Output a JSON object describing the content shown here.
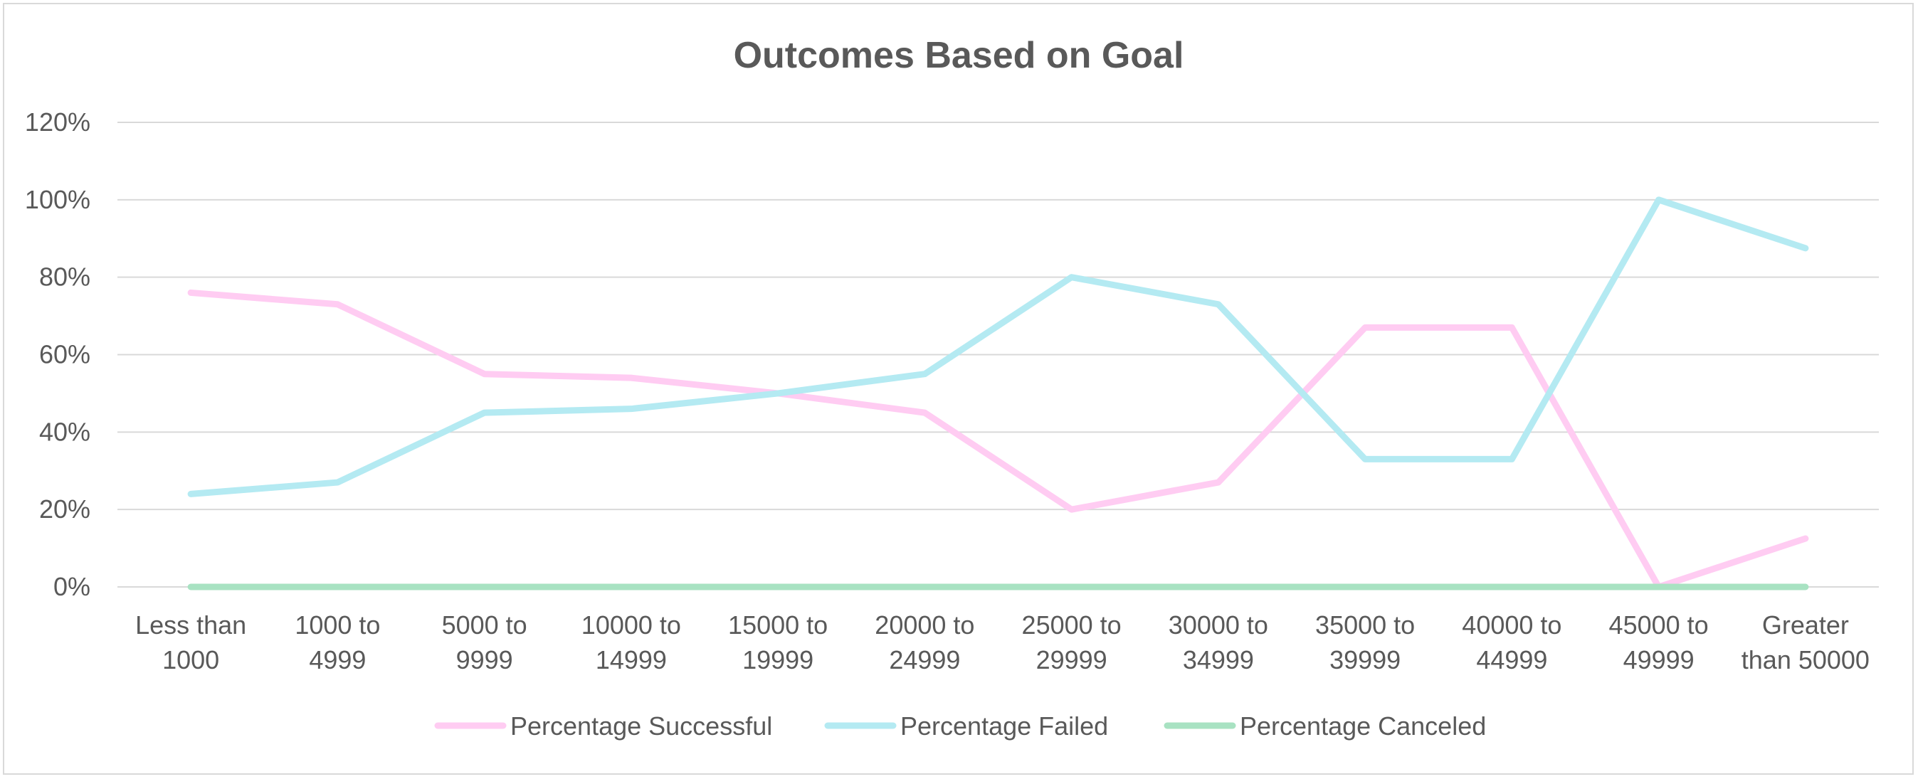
{
  "chart_data": {
    "type": "line",
    "title": "Outcomes Based on Goal",
    "xlabel": "",
    "ylabel": "",
    "ylim": [
      0,
      120
    ],
    "y_ticks": [
      "0%",
      "20%",
      "40%",
      "60%",
      "80%",
      "100%",
      "120%"
    ],
    "y_tick_values": [
      0,
      20,
      40,
      60,
      80,
      100,
      120
    ],
    "grid": true,
    "legend_position": "bottom",
    "categories": [
      [
        "Less than",
        "1000"
      ],
      [
        "1000 to",
        "4999"
      ],
      [
        "5000 to",
        "9999"
      ],
      [
        "10000 to",
        "14999"
      ],
      [
        "15000 to",
        "19999"
      ],
      [
        "20000 to",
        "24999"
      ],
      [
        "25000 to",
        "29999"
      ],
      [
        "30000 to",
        "34999"
      ],
      [
        "35000 to",
        "39999"
      ],
      [
        "40000 to",
        "44999"
      ],
      [
        "45000 to",
        "49999"
      ],
      [
        "Greater",
        "than 50000"
      ]
    ],
    "series": [
      {
        "name": "Percentage Successful",
        "color": "#ffccf2",
        "values": [
          76,
          73,
          55,
          54,
          50,
          45,
          20,
          27,
          67,
          67,
          0,
          12.5
        ]
      },
      {
        "name": "Percentage Failed",
        "color": "#b4eaf2",
        "values": [
          24,
          27,
          45,
          46,
          50,
          55,
          80,
          73,
          33,
          33,
          100,
          87.5
        ]
      },
      {
        "name": "Percentage Canceled",
        "color": "#a8e2c2",
        "values": [
          0,
          0,
          0,
          0,
          0,
          0,
          0,
          0,
          0,
          0,
          0,
          0
        ]
      }
    ]
  }
}
